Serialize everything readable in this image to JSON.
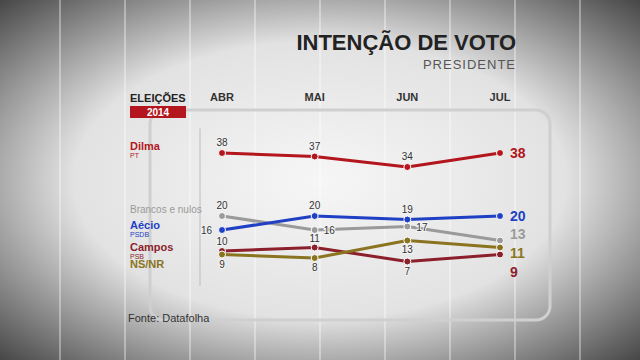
{
  "chart_data": {
    "type": "line",
    "title": "INTENÇÃO DE VOTO",
    "subtitle": "PRESIDENTE",
    "logo_title": "ELEIÇÕES",
    "logo_year": "2014",
    "source": "Fonte: Datafolha",
    "categories": [
      "ABR",
      "MAI",
      "JUN",
      "JUL"
    ],
    "series": [
      {
        "name": "Dilma",
        "party": "PT",
        "color": "#b3161c",
        "values": [
          38,
          37,
          34,
          38
        ]
      },
      {
        "name": "Brancos e nulos",
        "color": "#9a9a9a",
        "values": [
          20,
          16,
          17,
          13
        ]
      },
      {
        "name": "Aécio",
        "party": "PSDB",
        "color": "#1f3fc4",
        "values": [
          16,
          20,
          19,
          20
        ]
      },
      {
        "name": "Campos",
        "party": "PSB",
        "color": "#8c1f2c",
        "values": [
          10,
          11,
          7,
          9
        ]
      },
      {
        "name": "NS/NR",
        "color": "#8a7420",
        "values": [
          9,
          8,
          13,
          11
        ]
      }
    ],
    "ylim": [
      0,
      45
    ],
    "tick_labels": "x",
    "data_labels": true,
    "marker": "circle",
    "grid": false
  }
}
